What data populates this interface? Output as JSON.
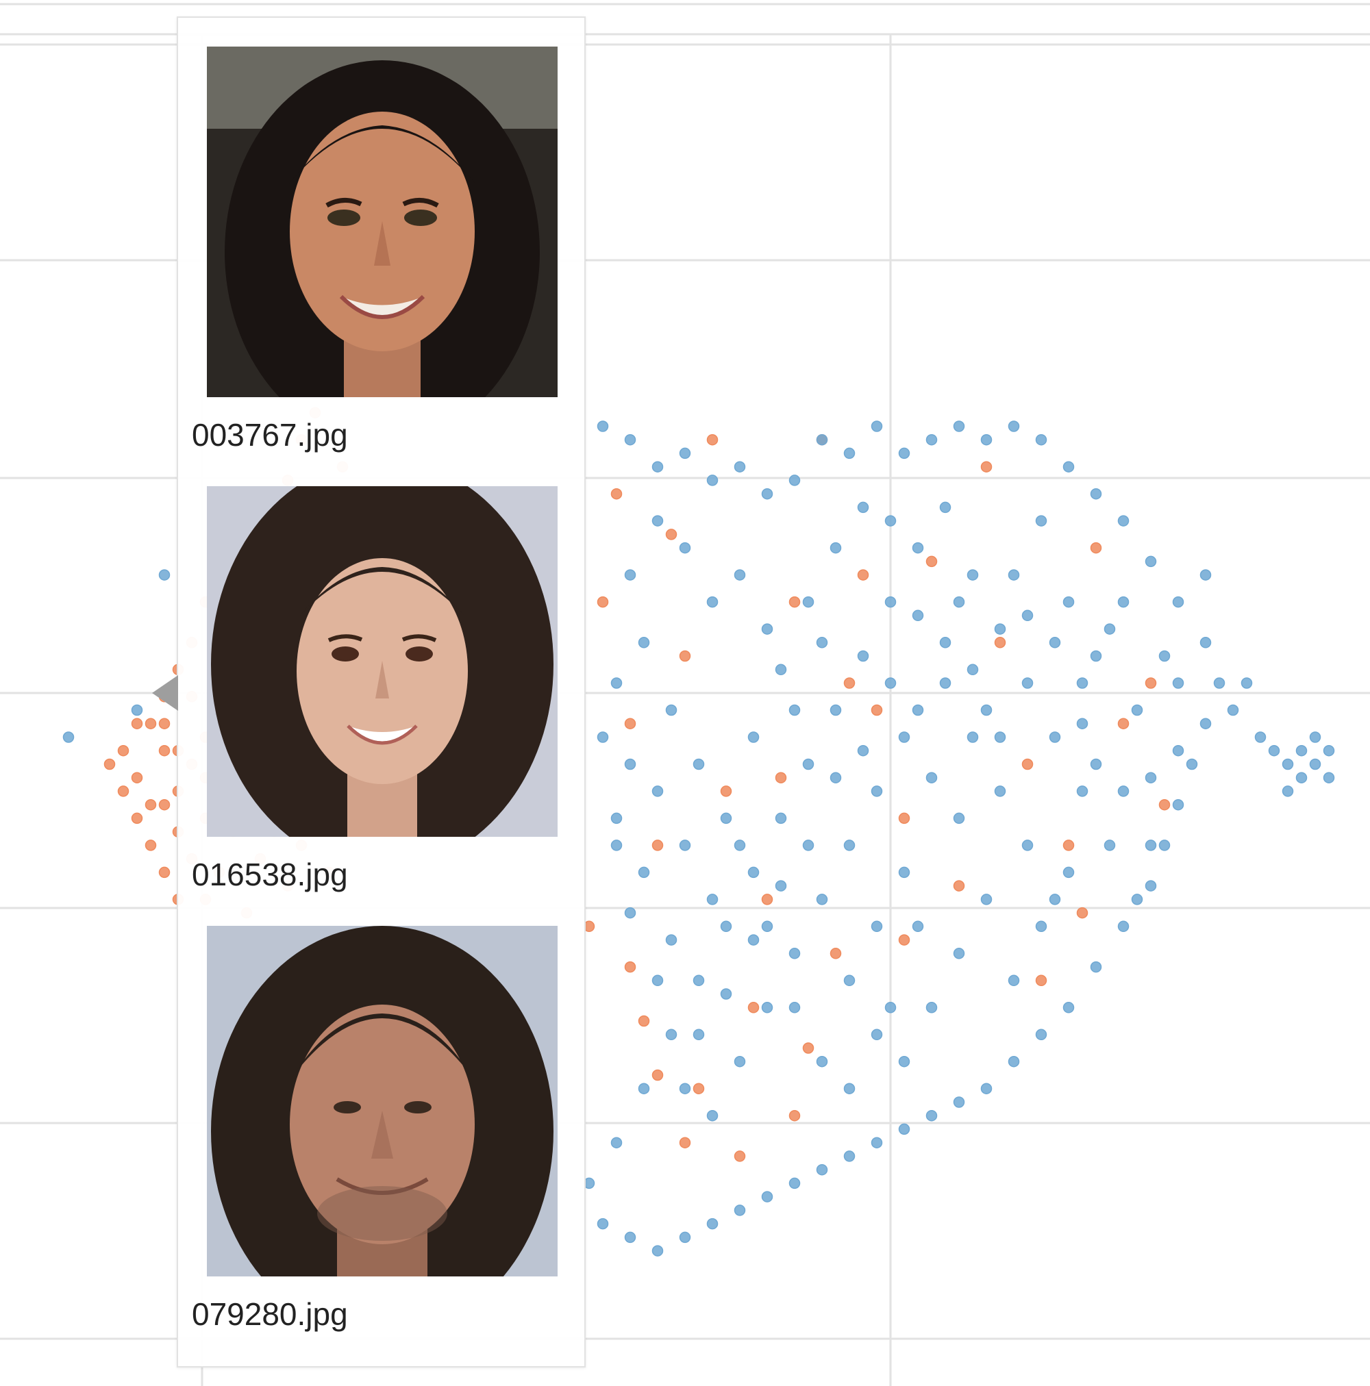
{
  "colors": {
    "series_a": "#6fa8d3",
    "series_b": "#ef8a5c",
    "grid": "#e2e2e2",
    "tooltip_border": "#e2e2e2",
    "pointer": "#9e9e9e"
  },
  "chart_data": {
    "type": "scatter",
    "title": "",
    "xlabel": "",
    "ylabel": "",
    "grid": true,
    "xlim": [
      0,
      100
    ],
    "ylim": [
      0,
      100
    ],
    "tick_labels_visible": false,
    "series": [
      {
        "color": "#ef8a5c",
        "points": [
          [
            10,
            45
          ],
          [
            11,
            43
          ],
          [
            12,
            47
          ],
          [
            12,
            49
          ],
          [
            13,
            44
          ],
          [
            10,
            42
          ],
          [
            13,
            41
          ],
          [
            14,
            46
          ],
          [
            12,
            51
          ],
          [
            11,
            40
          ],
          [
            14,
            39
          ],
          [
            15,
            48
          ],
          [
            15,
            42
          ],
          [
            13,
            53
          ],
          [
            9,
            47
          ],
          [
            16,
            44
          ],
          [
            16,
            38
          ],
          [
            14,
            55
          ],
          [
            12,
            38
          ],
          [
            16,
            52
          ],
          [
            15,
            36
          ],
          [
            17,
            41
          ],
          [
            17,
            47
          ],
          [
            15,
            58
          ],
          [
            13,
            36
          ],
          [
            18,
            50
          ],
          [
            18,
            43
          ],
          [
            16,
            56
          ],
          [
            18,
            35
          ],
          [
            17,
            60
          ],
          [
            19,
            46
          ],
          [
            19,
            39
          ],
          [
            18,
            54
          ],
          [
            19,
            62
          ],
          [
            16,
            33
          ],
          [
            20,
            49
          ],
          [
            20,
            41
          ],
          [
            19,
            57
          ],
          [
            20,
            64
          ],
          [
            18,
            31
          ],
          [
            21,
            44
          ],
          [
            21,
            37
          ],
          [
            21,
            52
          ],
          [
            20,
            60
          ],
          [
            21,
            67
          ],
          [
            20,
            29
          ],
          [
            22,
            47
          ],
          [
            22,
            40
          ],
          [
            22,
            55
          ],
          [
            22,
            63
          ],
          [
            22,
            70
          ],
          [
            22,
            27
          ],
          [
            23,
            45
          ],
          [
            23,
            33
          ],
          [
            23,
            58
          ],
          [
            23,
            66
          ],
          [
            23,
            72
          ],
          [
            23,
            24
          ],
          [
            24,
            50
          ],
          [
            24,
            38
          ],
          [
            24,
            61
          ],
          [
            24,
            75
          ],
          [
            24,
            22
          ],
          [
            25,
            43
          ],
          [
            25,
            55
          ],
          [
            25,
            68
          ],
          [
            25,
            31
          ],
          [
            25,
            78
          ],
          [
            25,
            19
          ],
          [
            8,
            46
          ],
          [
            9,
            44
          ],
          [
            11,
            49
          ],
          [
            14,
            51
          ],
          [
            13,
            47
          ],
          [
            10,
            49
          ],
          [
            12,
            43
          ],
          [
            15,
            45
          ],
          [
            17,
            52
          ],
          [
            16,
            49
          ],
          [
            19,
            51
          ],
          [
            45,
            66
          ],
          [
            50,
            54
          ],
          [
            46,
            49
          ],
          [
            53,
            44
          ],
          [
            48,
            40
          ],
          [
            56,
            36
          ],
          [
            58,
            58
          ],
          [
            61,
            32
          ],
          [
            64,
            50
          ],
          [
            66,
            42
          ],
          [
            68,
            61
          ],
          [
            70,
            37
          ],
          [
            73,
            55
          ],
          [
            75,
            46
          ],
          [
            78,
            40
          ],
          [
            80,
            62
          ],
          [
            82,
            49
          ],
          [
            85,
            43
          ],
          [
            72,
            68
          ],
          [
            63,
            60
          ],
          [
            57,
            45
          ],
          [
            49,
            63
          ],
          [
            52,
            70
          ],
          [
            44,
            58
          ],
          [
            47,
            27
          ],
          [
            51,
            22
          ],
          [
            55,
            28
          ],
          [
            59,
            25
          ],
          [
            43,
            34
          ],
          [
            46,
            31
          ],
          [
            48,
            23
          ],
          [
            50,
            18
          ],
          [
            54,
            17
          ],
          [
            58,
            20
          ],
          [
            62,
            52
          ],
          [
            76,
            30
          ],
          [
            79,
            35
          ],
          [
            84,
            52
          ],
          [
            60,
            70
          ],
          [
            66,
            33
          ]
        ]
      },
      {
        "color": "#6fa8d3",
        "points": [
          [
            44,
            71
          ],
          [
            46,
            70
          ],
          [
            48,
            68
          ],
          [
            50,
            69
          ],
          [
            52,
            67
          ],
          [
            54,
            68
          ],
          [
            56,
            66
          ],
          [
            58,
            67
          ],
          [
            60,
            70
          ],
          [
            62,
            69
          ],
          [
            64,
            71
          ],
          [
            66,
            69
          ],
          [
            68,
            70
          ],
          [
            70,
            71
          ],
          [
            72,
            70
          ],
          [
            74,
            71
          ],
          [
            76,
            70
          ],
          [
            78,
            68
          ],
          [
            80,
            66
          ],
          [
            82,
            64
          ],
          [
            84,
            61
          ],
          [
            86,
            58
          ],
          [
            88,
            55
          ],
          [
            89,
            52
          ],
          [
            88,
            49
          ],
          [
            87,
            46
          ],
          [
            86,
            43
          ],
          [
            85,
            40
          ],
          [
            84,
            37
          ],
          [
            82,
            34
          ],
          [
            80,
            31
          ],
          [
            78,
            28
          ],
          [
            76,
            26
          ],
          [
            74,
            24
          ],
          [
            72,
            22
          ],
          [
            70,
            21
          ],
          [
            68,
            20
          ],
          [
            66,
            19
          ],
          [
            64,
            18
          ],
          [
            62,
            17
          ],
          [
            60,
            16
          ],
          [
            58,
            15
          ],
          [
            56,
            14
          ],
          [
            54,
            13
          ],
          [
            52,
            12
          ],
          [
            50,
            11
          ],
          [
            48,
            10
          ],
          [
            46,
            11
          ],
          [
            44,
            12
          ],
          [
            43,
            15
          ],
          [
            45,
            18
          ],
          [
            47,
            22
          ],
          [
            49,
            26
          ],
          [
            51,
            30
          ],
          [
            53,
            34
          ],
          [
            55,
            38
          ],
          [
            57,
            42
          ],
          [
            59,
            46
          ],
          [
            61,
            50
          ],
          [
            63,
            54
          ],
          [
            65,
            58
          ],
          [
            67,
            62
          ],
          [
            69,
            65
          ],
          [
            71,
            60
          ],
          [
            73,
            56
          ],
          [
            75,
            52
          ],
          [
            77,
            48
          ],
          [
            79,
            44
          ],
          [
            81,
            40
          ],
          [
            83,
            36
          ],
          [
            60,
            55
          ],
          [
            58,
            50
          ],
          [
            56,
            56
          ],
          [
            54,
            60
          ],
          [
            52,
            58
          ],
          [
            50,
            62
          ],
          [
            48,
            64
          ],
          [
            46,
            60
          ],
          [
            47,
            55
          ],
          [
            49,
            50
          ],
          [
            51,
            46
          ],
          [
            53,
            42
          ],
          [
            55,
            48
          ],
          [
            57,
            53
          ],
          [
            59,
            58
          ],
          [
            61,
            62
          ],
          [
            63,
            65
          ],
          [
            65,
            64
          ],
          [
            67,
            57
          ],
          [
            69,
            52
          ],
          [
            71,
            48
          ],
          [
            73,
            44
          ],
          [
            75,
            40
          ],
          [
            77,
            36
          ],
          [
            79,
            52
          ],
          [
            81,
            56
          ],
          [
            83,
            50
          ],
          [
            85,
            54
          ],
          [
            86,
            47
          ],
          [
            84,
            45
          ],
          [
            66,
            48
          ],
          [
            64,
            44
          ],
          [
            62,
            40
          ],
          [
            60,
            36
          ],
          [
            58,
            32
          ],
          [
            56,
            28
          ],
          [
            54,
            24
          ],
          [
            52,
            20
          ],
          [
            50,
            22
          ],
          [
            48,
            30
          ],
          [
            46,
            35
          ],
          [
            45,
            42
          ],
          [
            44,
            48
          ],
          [
            45,
            52
          ],
          [
            62,
            30
          ],
          [
            64,
            26
          ],
          [
            66,
            24
          ],
          [
            68,
            28
          ],
          [
            70,
            32
          ],
          [
            72,
            36
          ],
          [
            74,
            30
          ],
          [
            76,
            34
          ],
          [
            78,
            38
          ],
          [
            80,
            46
          ],
          [
            82,
            58
          ],
          [
            70,
            58
          ],
          [
            68,
            45
          ],
          [
            66,
            38
          ],
          [
            64,
            34
          ],
          [
            62,
            22
          ],
          [
            60,
            24
          ],
          [
            58,
            28
          ],
          [
            56,
            34
          ],
          [
            54,
            40
          ],
          [
            52,
            36
          ],
          [
            50,
            40
          ],
          [
            48,
            44
          ],
          [
            46,
            46
          ],
          [
            70,
            42
          ],
          [
            72,
            50
          ],
          [
            74,
            60
          ],
          [
            76,
            64
          ],
          [
            78,
            58
          ],
          [
            80,
            54
          ],
          [
            82,
            44
          ],
          [
            84,
            40
          ],
          [
            86,
            52
          ],
          [
            88,
            60
          ],
          [
            90,
            50
          ],
          [
            92,
            48
          ],
          [
            94,
            46
          ],
          [
            95,
            47
          ],
          [
            96,
            46
          ],
          [
            97,
            47
          ],
          [
            95,
            45
          ],
          [
            96,
            48
          ],
          [
            97,
            45
          ],
          [
            93,
            47
          ],
          [
            91,
            52
          ],
          [
            94,
            44
          ],
          [
            61,
            45
          ],
          [
            63,
            47
          ],
          [
            65,
            52
          ],
          [
            67,
            50
          ],
          [
            69,
            55
          ],
          [
            71,
            53
          ],
          [
            73,
            48
          ],
          [
            75,
            57
          ],
          [
            77,
            55
          ],
          [
            79,
            49
          ],
          [
            59,
            40
          ],
          [
            57,
            37
          ],
          [
            55,
            33
          ],
          [
            53,
            29
          ],
          [
            51,
            26
          ],
          [
            49,
            33
          ],
          [
            47,
            38
          ],
          [
            45,
            40
          ],
          [
            65,
            28
          ],
          [
            67,
            34
          ],
          [
            10,
            50
          ],
          [
            5,
            48
          ],
          [
            12,
            60
          ]
        ]
      }
    ]
  },
  "tooltip": {
    "items": [
      {
        "filename": "003767.jpg"
      },
      {
        "filename": "016538.jpg"
      },
      {
        "filename": "079280.jpg"
      }
    ]
  }
}
